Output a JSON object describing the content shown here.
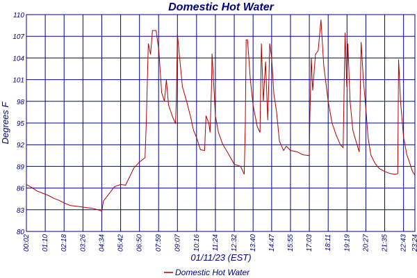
{
  "chart_data": {
    "type": "line",
    "title": "Domestic Hot Water",
    "xlabel": "01/11/23 (EST)",
    "ylabel": "Degrees F",
    "ylim": [
      80,
      110
    ],
    "y_ticks": [
      80,
      83,
      86,
      89,
      92,
      95,
      98,
      101,
      104,
      107,
      110
    ],
    "x_ticks": [
      "00:02",
      "01:10",
      "02:18",
      "03:26",
      "04:34",
      "05:42",
      "06:50",
      "07:59",
      "09:07",
      "10:16",
      "11:24",
      "12:32",
      "13:40",
      "14:47",
      "15:55",
      "17:03",
      "18:11",
      "19:19",
      "20:27",
      "21:35",
      "22:43",
      "23:24"
    ],
    "grid": true,
    "legend_position": "bottom-center",
    "colors": {
      "series": "#b00000",
      "grid": "#000080",
      "text": "#000080",
      "axis": "#000080"
    },
    "series": [
      {
        "name": "Domestic Hot Water",
        "points": [
          [
            "00:02",
            86.5
          ],
          [
            "00:20",
            86.1
          ],
          [
            "00:40",
            85.6
          ],
          [
            "01:00",
            85.3
          ],
          [
            "01:20",
            85.0
          ],
          [
            "01:40",
            84.6
          ],
          [
            "02:00",
            84.3
          ],
          [
            "02:20",
            83.9
          ],
          [
            "02:40",
            83.6
          ],
          [
            "03:00",
            83.5
          ],
          [
            "03:20",
            83.4
          ],
          [
            "03:40",
            83.3
          ],
          [
            "04:00",
            83.2
          ],
          [
            "04:20",
            83.0
          ],
          [
            "04:34",
            82.8
          ],
          [
            "04:40",
            84.2
          ],
          [
            "05:00",
            85.2
          ],
          [
            "05:20",
            86.2
          ],
          [
            "05:42",
            86.5
          ],
          [
            "06:00",
            86.4
          ],
          [
            "06:15",
            87.6
          ],
          [
            "06:30",
            88.8
          ],
          [
            "06:50",
            89.6
          ],
          [
            "07:10",
            90.2
          ],
          [
            "07:15",
            95.5
          ],
          [
            "07:22",
            106.0
          ],
          [
            "07:30",
            104.5
          ],
          [
            "07:37",
            107.8
          ],
          [
            "07:50",
            107.8
          ],
          [
            "08:00",
            105.0
          ],
          [
            "08:10",
            99.2
          ],
          [
            "08:20",
            98.0
          ],
          [
            "08:27",
            101.0
          ],
          [
            "08:35",
            97.5
          ],
          [
            "08:50",
            95.8
          ],
          [
            "09:00",
            94.9
          ],
          [
            "09:03",
            98.0
          ],
          [
            "09:07",
            107.3
          ],
          [
            "09:15",
            104.0
          ],
          [
            "09:25",
            100.0
          ],
          [
            "09:40",
            98.0
          ],
          [
            "09:55",
            95.8
          ],
          [
            "10:05",
            94.0
          ],
          [
            "10:16",
            93.0
          ],
          [
            "10:30",
            91.3
          ],
          [
            "10:45",
            91.2
          ],
          [
            "10:50",
            96.0
          ],
          [
            "11:00",
            95.0
          ],
          [
            "11:05",
            93.7
          ],
          [
            "11:10",
            100.0
          ],
          [
            "11:12",
            104.6
          ],
          [
            "11:20",
            99.0
          ],
          [
            "11:24",
            96.0
          ],
          [
            "11:35",
            93.7
          ],
          [
            "11:50",
            92.1
          ],
          [
            "12:10",
            90.8
          ],
          [
            "12:32",
            89.3
          ],
          [
            "12:55",
            89.0
          ],
          [
            "13:08",
            87.9
          ],
          [
            "13:12",
            95.0
          ],
          [
            "13:15",
            106.5
          ],
          [
            "13:20",
            106.5
          ],
          [
            "13:30",
            101.0
          ],
          [
            "13:40",
            97.5
          ],
          [
            "13:55",
            94.5
          ],
          [
            "14:05",
            93.7
          ],
          [
            "14:10",
            106.0
          ],
          [
            "14:17",
            98.0
          ],
          [
            "14:25",
            103.5
          ],
          [
            "14:33",
            95.4
          ],
          [
            "14:37",
            101.0
          ],
          [
            "14:40",
            106.0
          ],
          [
            "14:47",
            104.0
          ],
          [
            "14:55",
            99.0
          ],
          [
            "15:05",
            96.5
          ],
          [
            "15:15",
            92.5
          ],
          [
            "15:30",
            91.2
          ],
          [
            "15:40",
            91.8
          ],
          [
            "15:55",
            91.2
          ],
          [
            "16:20",
            91.0
          ],
          [
            "16:40",
            90.6
          ],
          [
            "17:03",
            90.5
          ],
          [
            "17:05",
            96.0
          ],
          [
            "17:10",
            104.0
          ],
          [
            "17:15",
            99.5
          ],
          [
            "17:25",
            104.5
          ],
          [
            "17:35",
            105.0
          ],
          [
            "17:45",
            109.3
          ],
          [
            "17:55",
            103.0
          ],
          [
            "18:11",
            98.0
          ],
          [
            "18:25",
            95.0
          ],
          [
            "18:40",
            93.3
          ],
          [
            "18:55",
            92.0
          ],
          [
            "19:05",
            91.6
          ],
          [
            "19:12",
            107.5
          ],
          [
            "19:18",
            100.0
          ],
          [
            "19:22",
            106.0
          ],
          [
            "19:30",
            98.0
          ],
          [
            "19:40",
            94.0
          ],
          [
            "19:55",
            92.0
          ],
          [
            "20:03",
            91.0
          ],
          [
            "20:10",
            106.2
          ],
          [
            "20:18",
            101.0
          ],
          [
            "20:27",
            97.0
          ],
          [
            "20:35",
            93.0
          ],
          [
            "20:45",
            90.6
          ],
          [
            "21:00",
            89.4
          ],
          [
            "21:15",
            88.7
          ],
          [
            "21:35",
            88.3
          ],
          [
            "21:55",
            88.0
          ],
          [
            "22:15",
            87.9
          ],
          [
            "22:22",
            88.0
          ],
          [
            "22:25",
            103.8
          ],
          [
            "22:32",
            98.0
          ],
          [
            "22:43",
            93.0
          ],
          [
            "22:55",
            90.6
          ],
          [
            "23:05",
            89.5
          ],
          [
            "23:15",
            88.3
          ],
          [
            "23:24",
            87.8
          ]
        ]
      }
    ]
  }
}
